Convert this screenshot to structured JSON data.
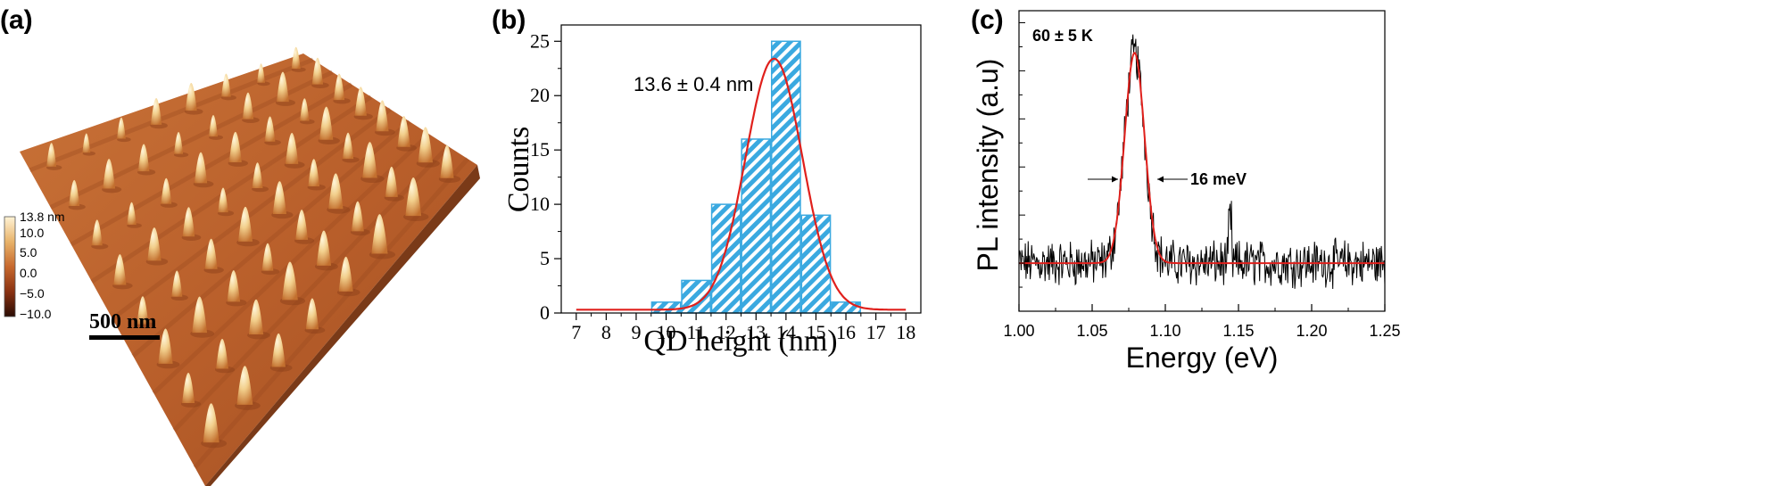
{
  "panel_a": {
    "label": "(a)",
    "scale_bar": "500 nm",
    "colorbar": {
      "max_label": "13.8 nm",
      "tick_labels": [
        "10.0",
        "5.0",
        "0.0",
        "−5.0",
        "−10.0"
      ],
      "colors": [
        "#fff3d6",
        "#e8b36a",
        "#c7692e",
        "#8a3212",
        "#2a0c04"
      ]
    },
    "surface_colors": {
      "base_light": "#c0652e",
      "base_dark": "#8f4a21",
      "peak": "#f7dfa6"
    }
  },
  "chart_data": [
    {
      "type": "bar",
      "panel_label": "(b)",
      "title": "",
      "xlabel": "QD height (nm)",
      "ylabel": "Counts",
      "xlim": [
        6.5,
        18.5
      ],
      "ylim": [
        0,
        26.5
      ],
      "xticks": [
        "7",
        "8",
        "9",
        "10",
        "11",
        "12",
        "13",
        "14",
        "15",
        "16",
        "17",
        "18"
      ],
      "yticks": [
        "0",
        "5",
        "10",
        "15",
        "20",
        "25"
      ],
      "categories": [
        10,
        11,
        12,
        13,
        14,
        15,
        16
      ],
      "values": [
        1,
        3,
        10,
        16,
        25,
        9,
        1
      ],
      "bar_color": "#3aa9e0",
      "fit": {
        "type": "gaussian",
        "center": 13.6,
        "sigma": 0.95,
        "amplitude": 23.1,
        "offset": 0.3,
        "color": "#e0201c"
      },
      "annotation": "13.6 ± 0.4 nm"
    },
    {
      "type": "line",
      "panel_label": "(c)",
      "title": "",
      "xlabel": "Energy (eV)",
      "ylabel": "PL intensity (a.u)",
      "xlim": [
        1.0,
        1.25
      ],
      "ylim": [
        0,
        1.0
      ],
      "xticks": [
        "1.00",
        "1.05",
        "1.10",
        "1.15",
        "1.20",
        "1.25"
      ],
      "series": [
        {
          "name": "PL spectrum",
          "color": "#000000",
          "peak_center": 1.079,
          "peak_height": 0.8,
          "baseline": 0.16
        },
        {
          "name": "Gaussian fit",
          "color": "#e0201c",
          "center": 1.079,
          "sigma": 0.0068,
          "amplitude": 0.7,
          "offset": 0.16
        }
      ],
      "temperature_label": "60 ± 5 K",
      "fwhm_label": "16 meV",
      "fwhm_bounds": [
        1.0715,
        1.0875
      ]
    }
  ]
}
